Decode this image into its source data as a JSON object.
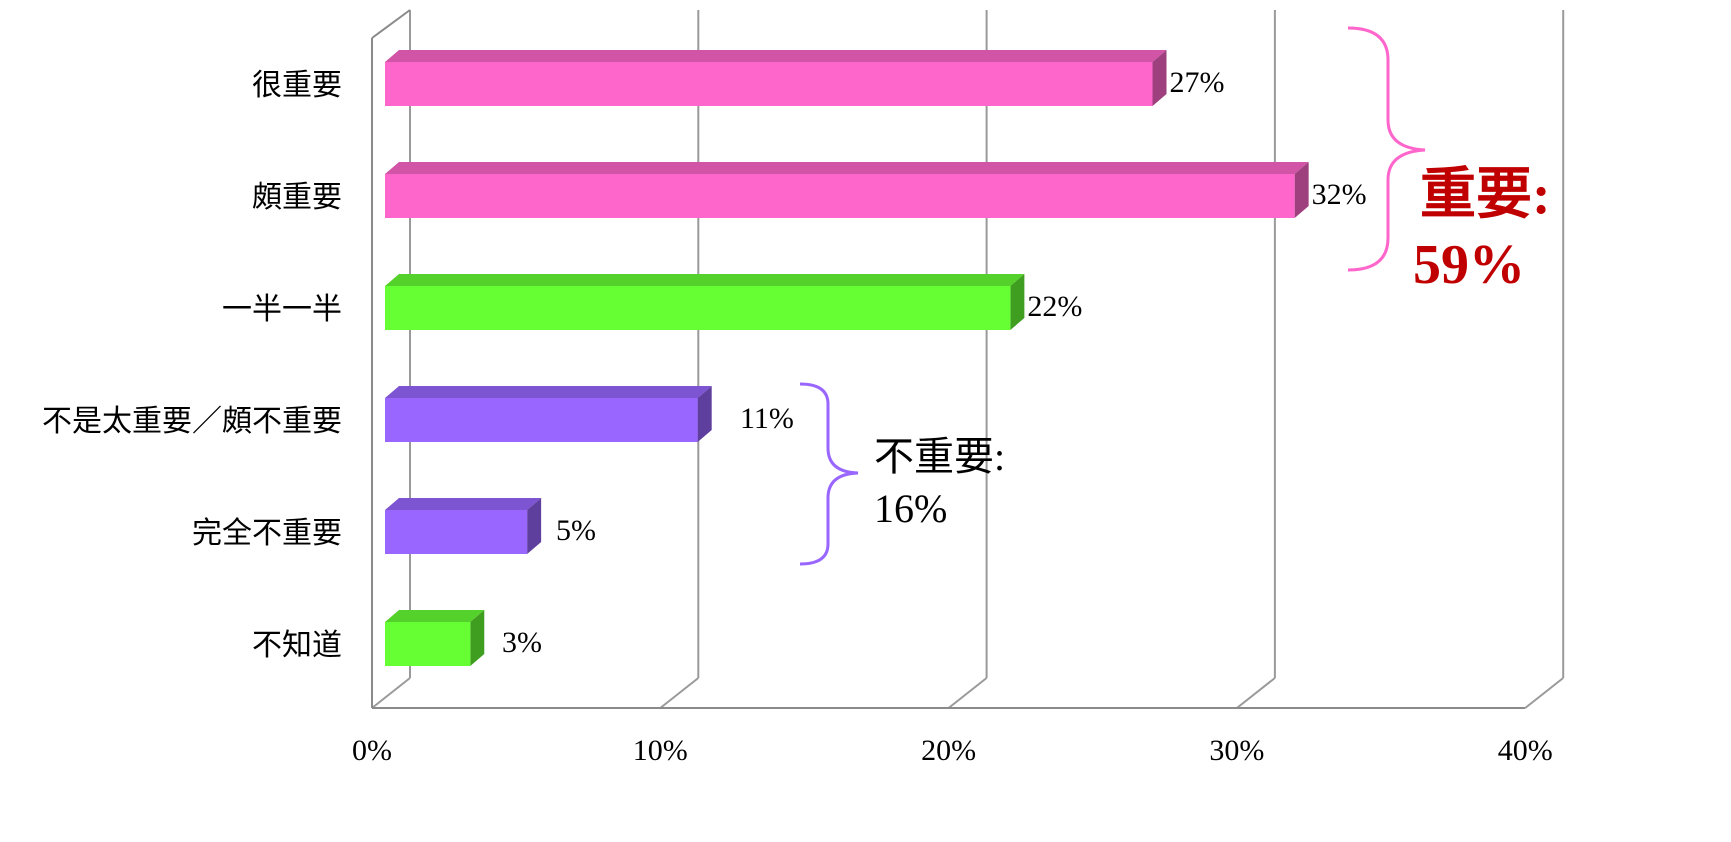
{
  "chart_data": {
    "type": "bar",
    "orientation": "horizontal",
    "categories": [
      "很重要",
      "頗重要",
      "一半一半",
      "不是太重要／頗不重要",
      "完全不重要",
      "不知道"
    ],
    "values": [
      27,
      32,
      22,
      11,
      5,
      3
    ],
    "value_labels": [
      "27%",
      "32%",
      "22%",
      "11%",
      "5%",
      "3%"
    ],
    "bar_colors": [
      "#ff66cc",
      "#ff66cc",
      "#66ff33",
      "#9966ff",
      "#9966ff",
      "#66ff33"
    ],
    "xlim": [
      0,
      40
    ],
    "x_ticks": [
      0,
      10,
      20,
      30,
      40
    ],
    "x_tick_labels": [
      "0%",
      "10%",
      "20%",
      "30%",
      "40%"
    ],
    "grid": true,
    "style": "3d",
    "annotations": [
      {
        "label_line1": "重要:",
        "label_line2": "59%",
        "color": "#c00000",
        "bold": true,
        "bracket_color": "#ff66cc",
        "spans": [
          "很重要",
          "頗重要"
        ]
      },
      {
        "label_line1": "不重要:",
        "label_line2": "16%",
        "color": "#000000",
        "bold": false,
        "bracket_color": "#9966ff",
        "spans": [
          "不是太重要／頗不重要",
          "完全不重要"
        ]
      }
    ]
  }
}
